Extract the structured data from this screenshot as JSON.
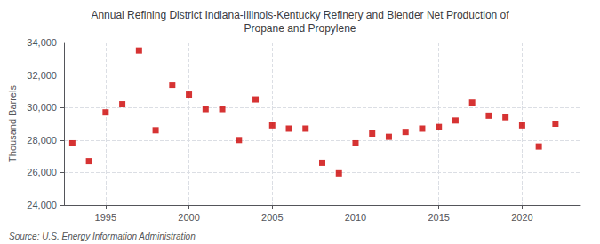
{
  "chart_data": {
    "type": "scatter",
    "title": "Annual Refining District Indiana-Illinois-Kentucky Refinery and Blender Net Production of\nPropane and Propylene",
    "ylabel": "Thousand Barrels",
    "annotations": [
      "Source: U.S. Energy Information Administration"
    ],
    "x": [
      1993,
      1994,
      1995,
      1996,
      1997,
      1998,
      1999,
      2000,
      2001,
      2002,
      2003,
      2004,
      2005,
      2006,
      2007,
      2008,
      2009,
      2010,
      2011,
      2012,
      2013,
      2014,
      2015,
      2016,
      2017,
      2018,
      2019,
      2020,
      2021,
      2022
    ],
    "values": [
      27800,
      26700,
      29700,
      30200,
      33500,
      28600,
      31400,
      30800,
      29900,
      29900,
      28000,
      30500,
      28900,
      28700,
      28700,
      26600,
      25950,
      27800,
      28400,
      28200,
      28500,
      28700,
      28800,
      29200,
      30300,
      29500,
      29400,
      28900,
      27600,
      29000
    ],
    "color": "#cc0000",
    "marker": "square",
    "xlim": [
      1992.5,
      2023.5
    ],
    "xticks": [
      1995,
      2000,
      2005,
      2010,
      2015,
      2020
    ],
    "ylim": [
      24000,
      34000
    ],
    "yticks": [
      {
        "value": 24000,
        "label": "24,000"
      },
      {
        "value": 26000,
        "label": "26,000"
      },
      {
        "value": 28000,
        "label": "28,000"
      },
      {
        "value": 30000,
        "label": "30,000"
      },
      {
        "value": 32000,
        "label": "32,000"
      },
      {
        "value": 34000,
        "label": "34,000"
      }
    ],
    "grid": true
  }
}
